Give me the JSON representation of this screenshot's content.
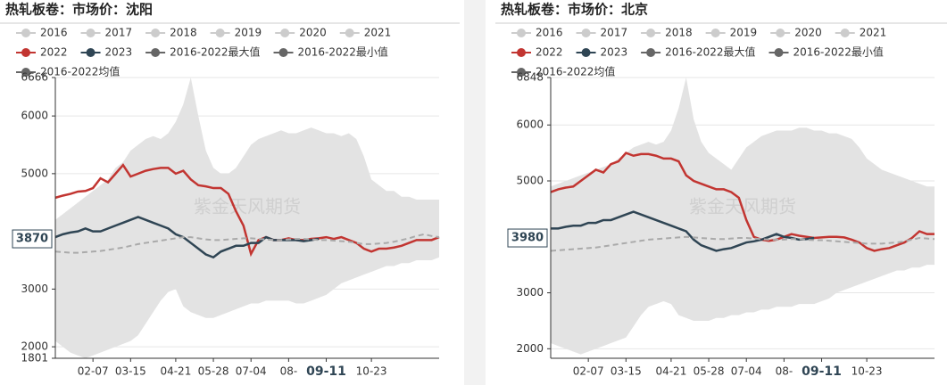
{
  "chart_data": [
    {
      "type": "line",
      "title": "热轧板卷：市场价：沈阳",
      "watermark": "紫金天风期货",
      "categories": [
        null,
        null,
        null,
        null,
        null,
        "02-07",
        null,
        null,
        null,
        null,
        "03-15",
        null,
        null,
        null,
        null,
        null,
        "04-21",
        null,
        null,
        null,
        null,
        "05-28",
        null,
        null,
        null,
        null,
        "07-04",
        null,
        null,
        null,
        null,
        "08-",
        null,
        null,
        null,
        null,
        "09-11",
        null,
        null,
        null,
        null,
        null,
        "10-23",
        null,
        null,
        null,
        null,
        null,
        null,
        null,
        null,
        null
      ],
      "highlight_category_index": 36,
      "ylim": [
        1801,
        6666
      ],
      "yticks": [
        1801,
        2000,
        3000,
        5000,
        6000,
        6666
      ],
      "grid": true,
      "current_value": 3870,
      "series": [
        {
          "name": "2016",
          "color": "#cccccc",
          "style": "hidden"
        },
        {
          "name": "2017",
          "color": "#cccccc",
          "style": "hidden"
        },
        {
          "name": "2018",
          "color": "#cccccc",
          "style": "hidden"
        },
        {
          "name": "2019",
          "color": "#cccccc",
          "style": "hidden"
        },
        {
          "name": "2020",
          "color": "#cccccc",
          "style": "hidden"
        },
        {
          "name": "2021",
          "color": "#cccccc",
          "style": "hidden"
        },
        {
          "name": "2022",
          "color": "#c23531",
          "style": "line",
          "values": [
            4583,
            4620,
            4650,
            4690,
            4700,
            4750,
            4920,
            4850,
            5000,
            5150,
            4950,
            5000,
            5050,
            5080,
            5100,
            5100,
            5000,
            5050,
            4900,
            4800,
            4780,
            4750,
            4750,
            4650,
            4350,
            4100,
            3610,
            3850,
            3900,
            3850,
            3850,
            3880,
            3850,
            3850,
            3870,
            3880,
            3900,
            3870,
            3900,
            3850,
            3800,
            3700,
            3650,
            3700,
            3700,
            3720,
            3750,
            3800,
            3850,
            3850,
            3850,
            3900
          ]
        },
        {
          "name": "2023",
          "color": "#2f4554",
          "style": "line",
          "values": [
            3900,
            3950,
            3980,
            4000,
            4050,
            4000,
            4000,
            4050,
            4100,
            4150,
            4200,
            4250,
            4200,
            4150,
            4100,
            4050,
            3950,
            3900,
            3800,
            3700,
            3600,
            3550,
            3650,
            3700,
            3750,
            3750,
            3800,
            3800,
            3900,
            3850,
            3850,
            3850,
            3850,
            3830,
            3850,
            3870,
            null,
            null,
            null,
            null,
            null,
            null,
            null,
            null,
            null,
            null,
            null,
            null,
            null,
            null,
            null,
            null
          ]
        },
        {
          "name": "2016-2022最大值",
          "color": "#666666",
          "style": "band-upper",
          "values": [
            4200,
            4300,
            4400,
            4500,
            4600,
            4700,
            4800,
            4900,
            5100,
            5200,
            5400,
            5500,
            5600,
            5650,
            5600,
            5700,
            5900,
            6200,
            6666,
            6000,
            5400,
            5100,
            5000,
            5000,
            5100,
            5300,
            5500,
            5600,
            5650,
            5700,
            5750,
            5700,
            5700,
            5750,
            5800,
            5750,
            5700,
            5700,
            5650,
            5700,
            5600,
            5300,
            4900,
            4800,
            4700,
            4700,
            4600,
            4600,
            4550,
            4550,
            4550,
            4550
          ]
        },
        {
          "name": "2016-2022最小值",
          "color": "#666666",
          "style": "band-lower",
          "values": [
            2100,
            2000,
            1900,
            1850,
            1801,
            1850,
            1900,
            1950,
            2000,
            2050,
            2100,
            2200,
            2400,
            2600,
            2800,
            2950,
            3000,
            2700,
            2600,
            2550,
            2500,
            2500,
            2550,
            2600,
            2650,
            2700,
            2750,
            2750,
            2800,
            2800,
            2800,
            2800,
            2750,
            2750,
            2800,
            2850,
            2900,
            3000,
            3100,
            3150,
            3200,
            3250,
            3300,
            3350,
            3400,
            3400,
            3450,
            3450,
            3500,
            3500,
            3500,
            3550
          ]
        },
        {
          "name": "2016-2022均值",
          "color": "#666666",
          "style": "dashed",
          "values": [
            3650,
            3640,
            3630,
            3630,
            3640,
            3650,
            3660,
            3680,
            3700,
            3720,
            3750,
            3780,
            3800,
            3820,
            3840,
            3860,
            3880,
            3900,
            3900,
            3880,
            3860,
            3850,
            3850,
            3860,
            3870,
            3880,
            3880,
            3870,
            3860,
            3850,
            3850,
            3860,
            3870,
            3870,
            3860,
            3850,
            3850,
            3840,
            3830,
            3820,
            3800,
            3780,
            3780,
            3790,
            3800,
            3820,
            3850,
            3880,
            3920,
            3950,
            3920,
            3900
          ]
        }
      ]
    },
    {
      "type": "line",
      "title": "热轧板卷：市场价：北京",
      "watermark": "紫金天风期货",
      "categories": [
        null,
        null,
        null,
        null,
        null,
        "02-07",
        null,
        null,
        null,
        null,
        "03-15",
        null,
        null,
        null,
        null,
        null,
        "04-21",
        null,
        null,
        null,
        null,
        "05-28",
        null,
        null,
        null,
        null,
        "07-04",
        null,
        null,
        null,
        null,
        "08-",
        null,
        null,
        null,
        null,
        "09-11",
        null,
        null,
        null,
        null,
        null,
        "10-23",
        null,
        null,
        null,
        null,
        null,
        null,
        null,
        null,
        null
      ],
      "highlight_category_index": 36,
      "ylim": [
        1830,
        6848
      ],
      "yticks": [
        2000,
        3000,
        5000,
        6000,
        6848
      ],
      "grid": true,
      "current_value": 3980,
      "series": [
        {
          "name": "2016",
          "color": "#cccccc",
          "style": "hidden"
        },
        {
          "name": "2017",
          "color": "#cccccc",
          "style": "hidden"
        },
        {
          "name": "2018",
          "color": "#cccccc",
          "style": "hidden"
        },
        {
          "name": "2019",
          "color": "#cccccc",
          "style": "hidden"
        },
        {
          "name": "2020",
          "color": "#cccccc",
          "style": "hidden"
        },
        {
          "name": "2021",
          "color": "#cccccc",
          "style": "hidden"
        },
        {
          "name": "2022",
          "color": "#c23531",
          "style": "line",
          "values": [
            4800,
            4850,
            4880,
            4900,
            5000,
            5100,
            5200,
            5150,
            5300,
            5350,
            5500,
            5450,
            5480,
            5480,
            5450,
            5400,
            5400,
            5350,
            5100,
            5000,
            4950,
            4900,
            4850,
            4850,
            4800,
            4700,
            4300,
            4000,
            3950,
            3930,
            3950,
            4000,
            4050,
            4020,
            4000,
            3980,
            3990,
            4000,
            4000,
            3990,
            3950,
            3900,
            3800,
            3750,
            3780,
            3800,
            3850,
            3900,
            3980,
            4100,
            4050,
            4050
          ]
        },
        {
          "name": "2023",
          "color": "#2f4554",
          "style": "line",
          "values": [
            4150,
            4150,
            4180,
            4200,
            4200,
            4250,
            4250,
            4300,
            4300,
            4350,
            4400,
            4450,
            4400,
            4350,
            4300,
            4250,
            4200,
            4150,
            4100,
            3950,
            3850,
            3800,
            3750,
            3780,
            3800,
            3850,
            3900,
            3920,
            3950,
            4000,
            4050,
            4000,
            3980,
            3950,
            3960,
            3980,
            null,
            null,
            null,
            null,
            null,
            null,
            null,
            null,
            null,
            null,
            null,
            null,
            null,
            null,
            null,
            null
          ]
        },
        {
          "name": "2016-2022最大值",
          "color": "#666666",
          "style": "band-upper",
          "values": [
            4900,
            4950,
            5000,
            5050,
            5100,
            5150,
            5200,
            5250,
            5300,
            5400,
            5500,
            5600,
            5650,
            5700,
            5650,
            5700,
            5900,
            6300,
            6848,
            6100,
            5700,
            5500,
            5400,
            5300,
            5200,
            5400,
            5600,
            5700,
            5800,
            5850,
            5900,
            5900,
            5900,
            5950,
            5950,
            5900,
            5900,
            5850,
            5850,
            5800,
            5750,
            5600,
            5400,
            5300,
            5200,
            5150,
            5100,
            5050,
            5000,
            4950,
            4900,
            4900
          ]
        },
        {
          "name": "2016-2022最小值",
          "color": "#666666",
          "style": "band-lower",
          "values": [
            2100,
            2050,
            2000,
            1950,
            1900,
            1950,
            2000,
            2050,
            2100,
            2150,
            2200,
            2400,
            2600,
            2750,
            2800,
            2850,
            2800,
            2600,
            2550,
            2500,
            2500,
            2500,
            2550,
            2550,
            2600,
            2600,
            2650,
            2650,
            2700,
            2700,
            2750,
            2750,
            2750,
            2800,
            2800,
            2800,
            2850,
            2900,
            3000,
            3050,
            3100,
            3150,
            3200,
            3250,
            3300,
            3350,
            3400,
            3400,
            3450,
            3450,
            3500,
            3500
          ]
        },
        {
          "name": "2016-2022均值",
          "color": "#666666",
          "style": "dashed",
          "values": [
            3750,
            3760,
            3770,
            3780,
            3790,
            3800,
            3810,
            3830,
            3850,
            3870,
            3890,
            3910,
            3930,
            3950,
            3960,
            3970,
            3980,
            3990,
            4000,
            3990,
            3980,
            3970,
            3960,
            3960,
            3970,
            3980,
            3980,
            3970,
            3960,
            3950,
            3950,
            3950,
            3960,
            3960,
            3950,
            3940,
            3940,
            3930,
            3920,
            3910,
            3900,
            3890,
            3880,
            3880,
            3880,
            3890,
            3900,
            3920,
            3950,
            3980,
            3970,
            3960
          ]
        }
      ]
    }
  ]
}
